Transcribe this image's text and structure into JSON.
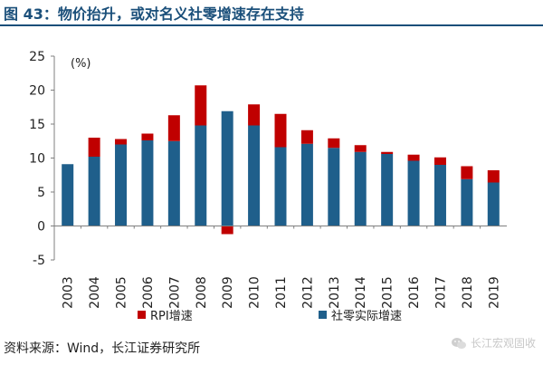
{
  "figure": {
    "title": "图 43：物价抬升，或对名义社零增速存在支持",
    "source": "资料来源：Wind，长江证券研究所",
    "watermark": "长江宏观固收"
  },
  "colors": {
    "title": "#1a4f7a",
    "real_growth": "#1f5f8b",
    "rpi": "#c00000",
    "axis": "#7f7f7f"
  },
  "icons": {
    "watermark": "wechat-icon"
  },
  "chart_data": {
    "type": "bar",
    "stacked": true,
    "unit_label": "(%)",
    "categories": [
      "2003",
      "2004",
      "2005",
      "2006",
      "2007",
      "2008",
      "2009",
      "2010",
      "2011",
      "2012",
      "2013",
      "2014",
      "2015",
      "2016",
      "2017",
      "2018",
      "2019"
    ],
    "series": [
      {
        "name": "社零实际增速",
        "color": "#1f5f8b",
        "values": [
          9.1,
          10.2,
          12.0,
          12.6,
          12.5,
          14.8,
          16.9,
          14.8,
          11.6,
          12.1,
          11.5,
          10.9,
          10.6,
          9.6,
          9.0,
          6.9,
          6.4
        ]
      },
      {
        "name": "RPI增速",
        "color": "#c00000",
        "values": [
          0.0,
          2.8,
          0.8,
          1.0,
          3.8,
          5.9,
          -1.2,
          3.1,
          4.9,
          2.0,
          1.4,
          1.0,
          0.3,
          0.9,
          1.1,
          1.9,
          1.8
        ]
      }
    ],
    "ylim": [
      -5,
      25
    ],
    "yticks": [
      -5,
      0,
      5,
      10,
      15,
      20,
      25
    ],
    "legend": "bottom",
    "grid": false
  }
}
